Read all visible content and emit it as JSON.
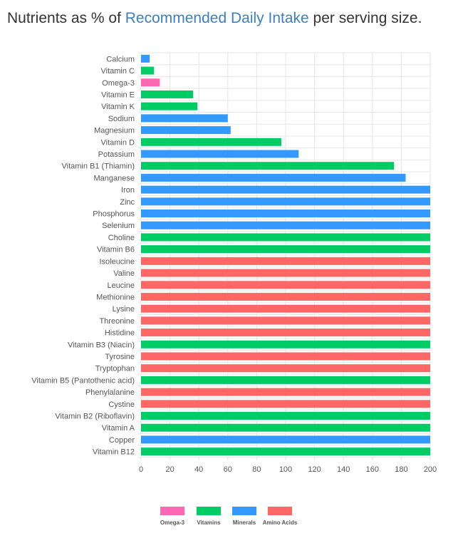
{
  "header": {
    "title_prefix": "Nutrients as % of ",
    "title_link": "Recommended Daily Intake",
    "title_suffix": " per serving size."
  },
  "chart_data": {
    "type": "bar",
    "orientation": "horizontal",
    "title": "Nutrients as % of Recommended Daily Intake per serving size.",
    "xlabel": "",
    "ylabel": "",
    "xlim": [
      0,
      200
    ],
    "xticks": [
      0,
      20,
      40,
      60,
      80,
      100,
      120,
      140,
      160,
      180,
      200
    ],
    "grid": true,
    "legend_position": "bottom",
    "colors": {
      "Omega-3": "#ff66b3",
      "Vitamins": "#00cc66",
      "Minerals": "#3399ff",
      "Amino Acids": "#ff6666"
    },
    "legend": [
      "Omega-3",
      "Vitamins",
      "Minerals",
      "Amino Acids"
    ],
    "categories": [
      "Calcium",
      "Vitamin C",
      "Omega-3",
      "Vitamin E",
      "Vitamin K",
      "Sodium",
      "Magnesium",
      "Vitamin D",
      "Potassium",
      "Vitamin B1 (Thiamin)",
      "Manganese",
      "Iron",
      "Zinc",
      "Phosphorus",
      "Selenium",
      "Choline",
      "Vitamin B6",
      "Isoleucine",
      "Valine",
      "Leucine",
      "Methionine",
      "Lysine",
      "Threonine",
      "Histidine",
      "Vitamin B3 (Niacin)",
      "Tyrosine",
      "Tryptophan",
      "Vitamin B5 (Pantothenic acid)",
      "Phenylalanine",
      "Cystine",
      "Vitamin B2 (Riboflavin)",
      "Vitamin A",
      "Copper",
      "Vitamin B12"
    ],
    "values": [
      6,
      9,
      13,
      36,
      39,
      60,
      62,
      97,
      109,
      175,
      183,
      200,
      200,
      200,
      200,
      200,
      200,
      200,
      200,
      200,
      200,
      200,
      200,
      200,
      200,
      200,
      200,
      200,
      200,
      200,
      200,
      200,
      200,
      200
    ],
    "groups": [
      "Minerals",
      "Vitamins",
      "Omega-3",
      "Vitamins",
      "Vitamins",
      "Minerals",
      "Minerals",
      "Vitamins",
      "Minerals",
      "Vitamins",
      "Minerals",
      "Minerals",
      "Minerals",
      "Minerals",
      "Minerals",
      "Vitamins",
      "Vitamins",
      "Amino Acids",
      "Amino Acids",
      "Amino Acids",
      "Amino Acids",
      "Amino Acids",
      "Amino Acids",
      "Amino Acids",
      "Vitamins",
      "Amino Acids",
      "Amino Acids",
      "Vitamins",
      "Amino Acids",
      "Amino Acids",
      "Vitamins",
      "Vitamins",
      "Minerals",
      "Vitamins"
    ]
  }
}
